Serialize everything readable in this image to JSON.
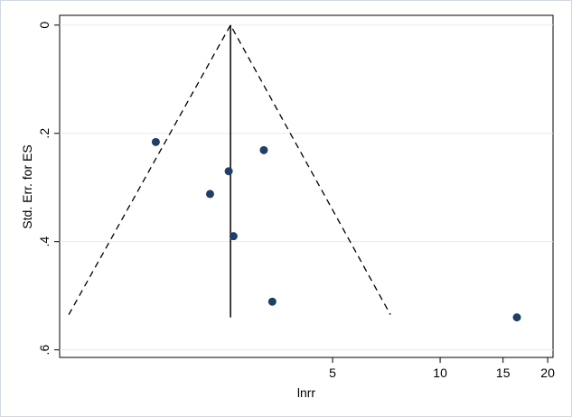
{
  "chart_data": {
    "type": "funnel",
    "x_label": "lnrr",
    "y_label": "Std. Err. for ES",
    "xlim": [
      0.861,
      20.7
    ],
    "xticks": [
      5,
      10,
      15,
      20
    ],
    "x_log": true,
    "ylim": [
      -0.018,
      0.614
    ],
    "y_reversed": true,
    "yticks": [
      0,
      {
        "value": 0.2,
        "label": ".2"
      },
      {
        "value": 0.4,
        "label": ".4"
      },
      {
        "value": 0.6,
        "label": ".6"
      }
    ],
    "grid": true,
    "points": {
      "x": [
        1.6,
        2.56,
        3.21,
        2.27,
        2.64,
        3.39,
        16.4
      ],
      "y": [
        0.216,
        0.27,
        0.231,
        0.312,
        0.39,
        0.511,
        0.54
      ],
      "color": "#1f3f66"
    },
    "effect_line": {
      "x": 2.59,
      "y": [
        0,
        0.54
      ]
    },
    "funnel": {
      "x": [
        0.913,
        2.59,
        7.26
      ],
      "y": [
        0.535,
        0,
        0.535
      ]
    }
  }
}
